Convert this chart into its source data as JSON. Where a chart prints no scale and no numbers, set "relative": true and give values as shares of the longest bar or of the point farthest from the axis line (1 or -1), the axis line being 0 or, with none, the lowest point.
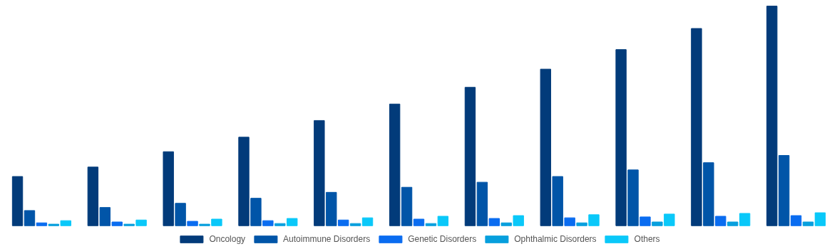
{
  "chart_data": {
    "type": "bar",
    "relative": true,
    "categories": [
      null,
      null,
      null,
      null,
      null,
      null,
      null,
      null,
      null,
      null,
      null
    ],
    "series": [
      {
        "name": "Oncology",
        "color": "#023b7a",
        "values": [
          0.224,
          0.267,
          0.337,
          0.403,
          0.479,
          0.554,
          0.63,
          0.713,
          0.802,
          0.898,
          1
        ]
      },
      {
        "name": "Autoimmune Disorders",
        "color": "#0155a8",
        "values": [
          0.069,
          0.083,
          0.102,
          0.125,
          0.152,
          0.175,
          0.198,
          0.224,
          0.254,
          0.287,
          0.32
        ]
      },
      {
        "name": "Genetic Disorders",
        "color": "#0a6cf0",
        "values": [
          0.013,
          0.017,
          0.02,
          0.023,
          0.026,
          0.03,
          0.033,
          0.036,
          0.04,
          0.043,
          0.046
        ]
      },
      {
        "name": "Ophthalmic Disorders",
        "color": "#079fdd",
        "values": [
          0.007,
          0.007,
          0.007,
          0.01,
          0.01,
          0.01,
          0.013,
          0.013,
          0.017,
          0.017,
          0.017
        ]
      },
      {
        "name": "Others",
        "color": "#0ac8f9",
        "values": [
          0.023,
          0.026,
          0.03,
          0.033,
          0.036,
          0.043,
          0.046,
          0.05,
          0.053,
          0.056,
          0.059
        ]
      }
    ],
    "grid": false,
    "legend": "bottom"
  }
}
